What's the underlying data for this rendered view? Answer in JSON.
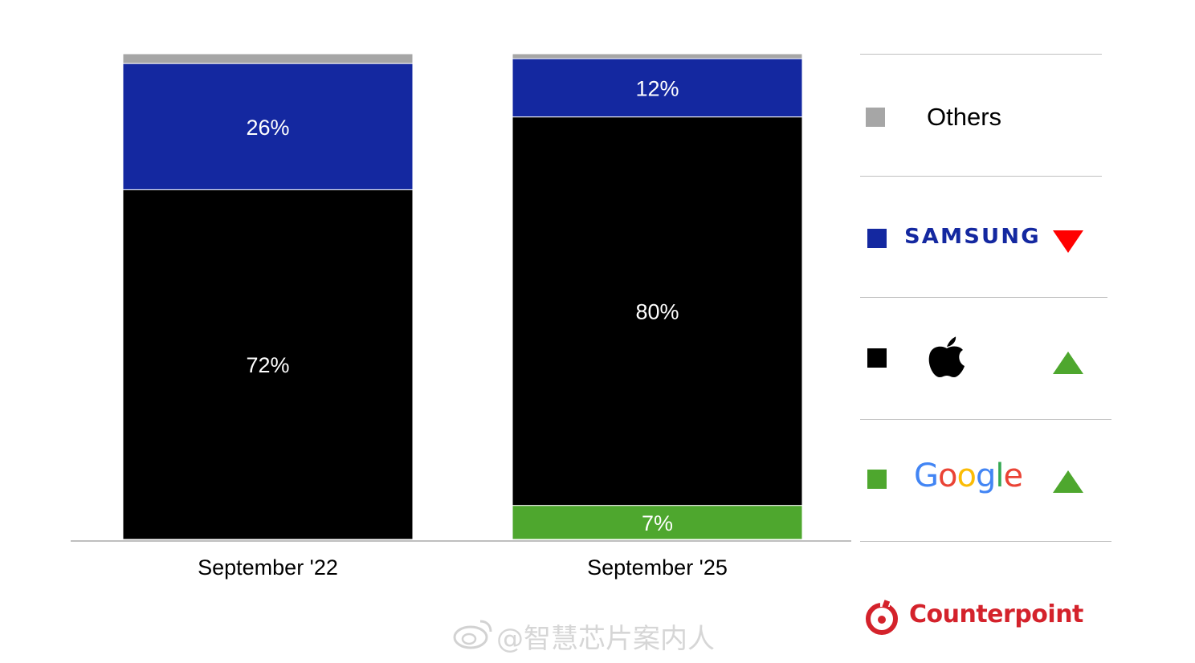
{
  "chart_data": {
    "type": "bar",
    "stacked": true,
    "categories": [
      "September '22",
      "September '25"
    ],
    "series": [
      {
        "key": "google",
        "color": "#4ea72e",
        "values": [
          0,
          7
        ],
        "labels": [
          "",
          "7%"
        ]
      },
      {
        "key": "apple",
        "color": "#000000",
        "values": [
          72,
          80
        ],
        "labels": [
          "72%",
          "80%"
        ]
      },
      {
        "key": "samsung",
        "color": "#1428a0",
        "values": [
          26,
          12
        ],
        "labels": [
          "26%",
          "12%"
        ]
      },
      {
        "key": "others",
        "color": "#a6a6a6",
        "values": [
          2,
          1
        ],
        "labels": [
          "",
          ""
        ]
      }
    ],
    "ylim": [
      0,
      100
    ],
    "legend": {
      "placement": "right",
      "items": [
        {
          "key": "others",
          "name": "Others",
          "brand": "",
          "color": "#a6a6a6",
          "trend": "none"
        },
        {
          "key": "samsung",
          "name": "",
          "brand": "SAMSUNG",
          "color": "#1428a0",
          "trend": "down"
        },
        {
          "key": "apple",
          "name": "",
          "brand": "apple-logo-icon",
          "color": "#000000",
          "trend": "up"
        },
        {
          "key": "google",
          "name": "",
          "brand": "Google",
          "color": "#4ea72e",
          "trend": "up"
        }
      ]
    }
  },
  "legend_text": {
    "others": "Others",
    "samsung": "SAMSUNG",
    "google": [
      "G",
      "o",
      "o",
      "g",
      "l",
      "e"
    ]
  },
  "google_letter_colors": [
    "#4285f4",
    "#ea4335",
    "#fbbc05",
    "#4285f4",
    "#34a853",
    "#ea4335"
  ],
  "trend_colors": {
    "up": "#4ea72e",
    "down": "#ff0000"
  },
  "branding": {
    "logo_text": "Counterpoint",
    "logo_color": "#d4222b"
  },
  "watermark": "@智慧芯片案内人"
}
